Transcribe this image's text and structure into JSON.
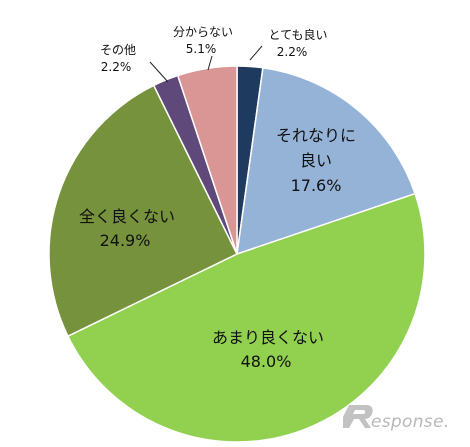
{
  "chart_data": {
    "type": "pie",
    "slices": [
      {
        "name": "とても良い",
        "value": 2.2,
        "label": "2.2%",
        "color": "#1f3a5f"
      },
      {
        "name": "それなりに良い",
        "value": 17.6,
        "label": "17.6%",
        "color": "#95b3d7"
      },
      {
        "name": "あまり良くない",
        "value": 48.0,
        "label": "48.0%",
        "color": "#92d050"
      },
      {
        "name": "全く良くない",
        "value": 24.9,
        "label": "24.9%",
        "color": "#76923c"
      },
      {
        "name": "その他",
        "value": 2.2,
        "label": "2.2%",
        "color": "#5f497a"
      },
      {
        "name": "分からない",
        "value": 5.1,
        "label": "5.1%",
        "color": "#d99694"
      }
    ],
    "start_angle_deg": 0,
    "direction": "clockwise",
    "legend": "none"
  },
  "labels": {
    "s0_name": "とても良い",
    "s0_value": "2.2%",
    "s1_name_line1": "それなりに",
    "s1_name_line2": "良い",
    "s1_value": "17.6%",
    "s2_name": "あまり良くない",
    "s2_value": "48.0%",
    "s3_name": "全く良くない",
    "s3_value": "24.9%",
    "s4_name": "その他",
    "s4_value": "2.2%",
    "s5_name": "分からない",
    "s5_value": "5.1%"
  },
  "watermark": {
    "text": "esponse."
  }
}
